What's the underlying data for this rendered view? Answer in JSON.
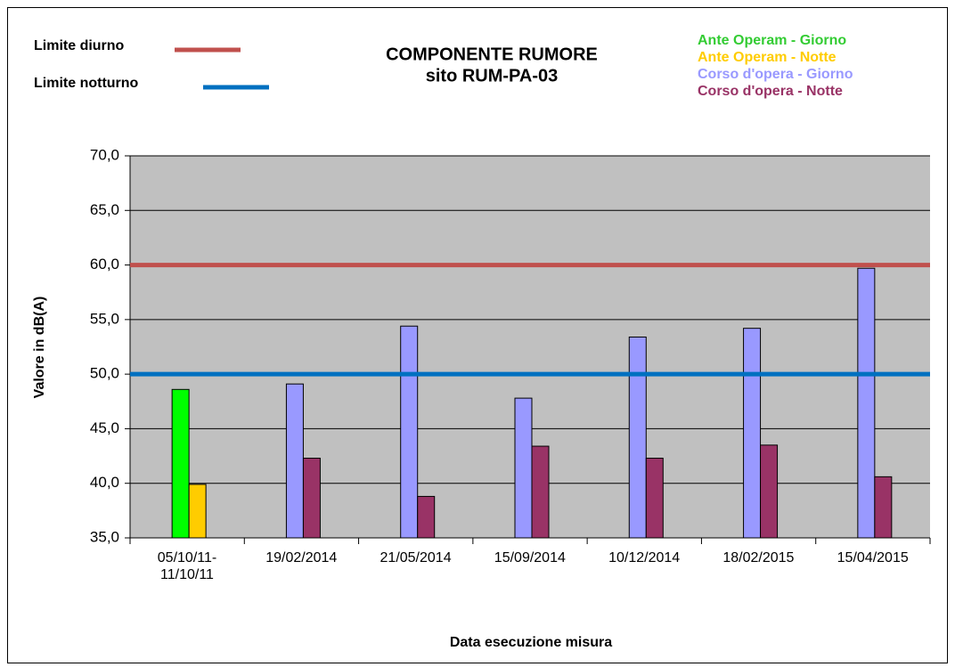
{
  "chart_data": {
    "type": "bar",
    "title": "COMPONENTE RUMORE",
    "subtitle": "sito RUM-PA-03",
    "y_label": "Valore in dB(A)",
    "x_label": "Data esecuzione misura",
    "categories": [
      "05/10/11-\n11/10/11",
      "19/02/2014",
      "21/05/2014",
      "15/09/2014",
      "10/12/2014",
      "18/02/2015",
      "15/04/2015"
    ],
    "series": [
      {
        "name": "Ante Operam - Giorno",
        "color": "#00ff00",
        "legend_color": "#33cc33",
        "values": [
          48.6,
          null,
          null,
          null,
          null,
          null,
          null
        ]
      },
      {
        "name": "Ante Operam - Notte",
        "color": "#ffcc00",
        "legend_color": "#ffcc00",
        "values": [
          39.9,
          null,
          null,
          null,
          null,
          null,
          null
        ]
      },
      {
        "name": "Corso d'opera - Giorno",
        "color": "#9999ff",
        "legend_color": "#9999ff",
        "values": [
          null,
          49.1,
          54.4,
          47.8,
          53.4,
          54.2,
          59.7
        ]
      },
      {
        "name": "Corso d'opera - Notte",
        "color": "#993366",
        "legend_color": "#993366",
        "values": [
          null,
          42.3,
          38.8,
          43.4,
          42.3,
          43.5,
          40.6
        ]
      }
    ],
    "limits": [
      {
        "name": "Limite diurno",
        "value": 60,
        "color": "#c0504d"
      },
      {
        "name": "Limite notturno",
        "value": 50,
        "color": "#0070c0"
      }
    ],
    "ylim": [
      35,
      70
    ],
    "yticks": [
      {
        "value": 35,
        "label": "35,0"
      },
      {
        "value": 40,
        "label": "40,0"
      },
      {
        "value": 45,
        "label": "45,0"
      },
      {
        "value": 50,
        "label": "50,0"
      },
      {
        "value": 55,
        "label": "55,0"
      },
      {
        "value": 60,
        "label": "60,0"
      },
      {
        "value": 65,
        "label": "65,0"
      },
      {
        "value": 70,
        "label": "70,0"
      }
    ],
    "grid": true
  }
}
